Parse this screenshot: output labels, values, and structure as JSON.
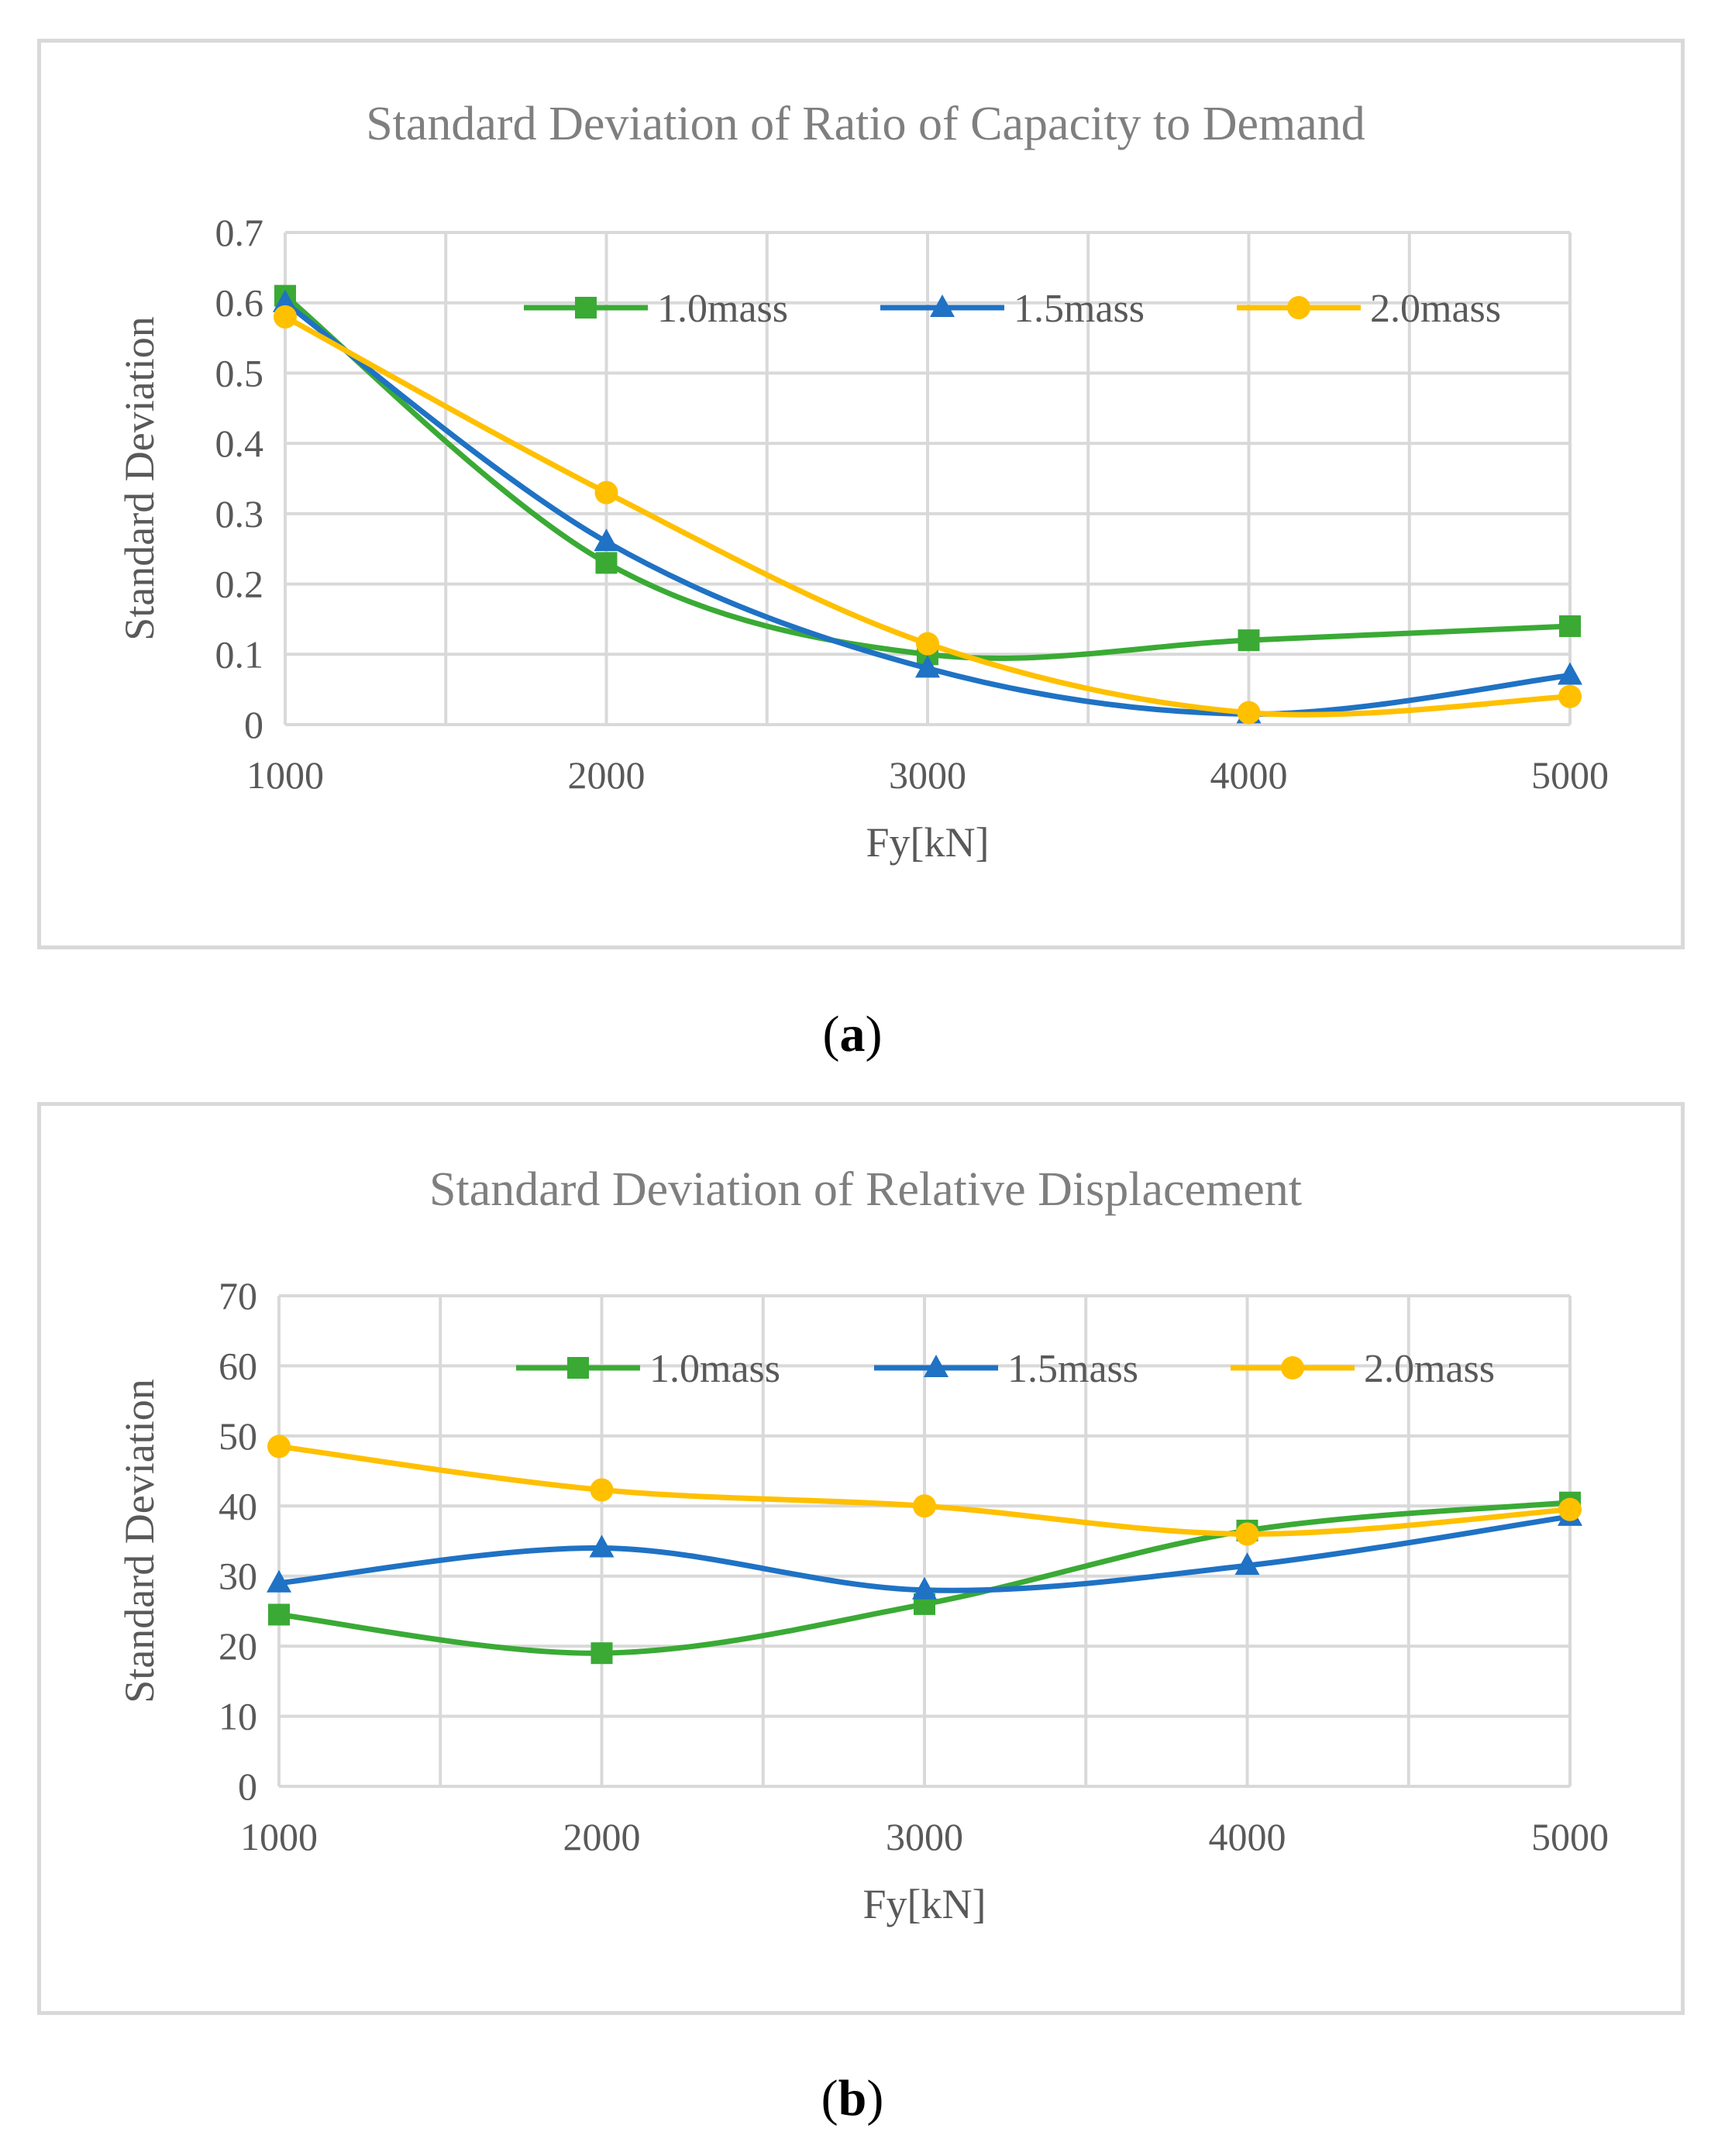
{
  "chart_data": [
    {
      "type": "line",
      "title": "Standard Deviation of Ratio of Capacity to Demand",
      "xlabel": "Fy[kN]",
      "ylabel": "Standard Deviation",
      "x": [
        1000,
        2000,
        3000,
        4000,
        5000
      ],
      "x_ticks": [
        "1000",
        "2000",
        "3000",
        "4000",
        "5000"
      ],
      "xlim": [
        1000,
        5000
      ],
      "ylim": [
        0,
        0.7
      ],
      "y_ticks": [
        "0",
        "0.1",
        "0.2",
        "0.3",
        "0.4",
        "0.5",
        "0.6",
        "0.7"
      ],
      "y_tick_values": [
        0,
        0.1,
        0.2,
        0.3,
        0.4,
        0.5,
        0.6,
        0.7
      ],
      "grid": true,
      "smooth": true,
      "legend_position": "top",
      "series": [
        {
          "name": "1.0mass",
          "marker": "square",
          "color": "#3aaa35",
          "values": [
            0.61,
            0.23,
            0.1,
            0.12,
            0.14
          ]
        },
        {
          "name": "1.5mass",
          "marker": "triangle",
          "color": "#1f72c4",
          "values": [
            0.6,
            0.26,
            0.08,
            0.015,
            0.07
          ]
        },
        {
          "name": "2.0mass",
          "marker": "circle",
          "color": "#ffc000",
          "values": [
            0.58,
            0.33,
            0.115,
            0.017,
            0.04
          ]
        }
      ]
    },
    {
      "type": "line",
      "title": "Standard Deviation of Relative Displacement",
      "xlabel": "Fy[kN]",
      "ylabel": "Standard Deviation",
      "x": [
        1000,
        2000,
        3000,
        4000,
        5000
      ],
      "x_ticks": [
        "1000",
        "2000",
        "3000",
        "4000",
        "5000"
      ],
      "xlim": [
        1000,
        5000
      ],
      "ylim": [
        0,
        70
      ],
      "y_ticks": [
        "0",
        "10",
        "20",
        "30",
        "40",
        "50",
        "60",
        "70"
      ],
      "y_tick_values": [
        0,
        10,
        20,
        30,
        40,
        50,
        60,
        70
      ],
      "grid": true,
      "smooth": true,
      "legend_position": "top",
      "series": [
        {
          "name": "1.0mass",
          "marker": "square",
          "color": "#3aaa35",
          "values": [
            24.5,
            19,
            26,
            36.5,
            40.5
          ]
        },
        {
          "name": "1.5mass",
          "marker": "triangle",
          "color": "#1f72c4",
          "values": [
            29,
            34,
            28,
            31.5,
            38.5
          ]
        },
        {
          "name": "2.0mass",
          "marker": "circle",
          "color": "#ffc000",
          "values": [
            48.5,
            42.3,
            40,
            36,
            39.5
          ]
        }
      ]
    }
  ],
  "captions": {
    "a": "a",
    "b": "b"
  }
}
